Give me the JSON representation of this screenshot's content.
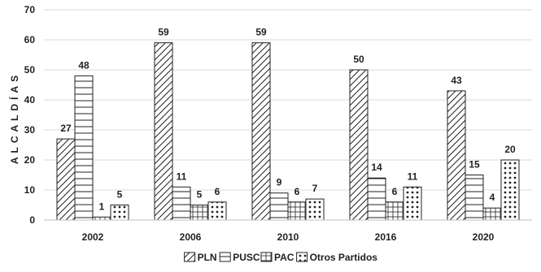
{
  "chart_data": {
    "type": "bar",
    "title": "",
    "xlabel": "",
    "ylabel": "ALCALDÍAS",
    "categories": [
      "2002",
      "2006",
      "2010",
      "2016",
      "2020"
    ],
    "series": [
      {
        "name": "PLN",
        "values": [
          27,
          59,
          59,
          50,
          43
        ],
        "pattern": "diagonal-hatch"
      },
      {
        "name": "PUSC",
        "values": [
          48,
          11,
          9,
          14,
          15
        ],
        "pattern": "horizontal-lines"
      },
      {
        "name": "PAC",
        "values": [
          1,
          5,
          6,
          6,
          4
        ],
        "pattern": "grid"
      },
      {
        "name": "Otros Partidos",
        "values": [
          5,
          6,
          7,
          11,
          20
        ],
        "pattern": "dots"
      }
    ],
    "ylim": [
      0,
      70
    ],
    "yticks": [
      0,
      10,
      20,
      30,
      40,
      50,
      60,
      70
    ],
    "grid": true,
    "legend": "bottom",
    "colors": {
      "bar_fill": "#ffffff",
      "stroke": "#222222",
      "grid": "#d9d9d9"
    }
  }
}
